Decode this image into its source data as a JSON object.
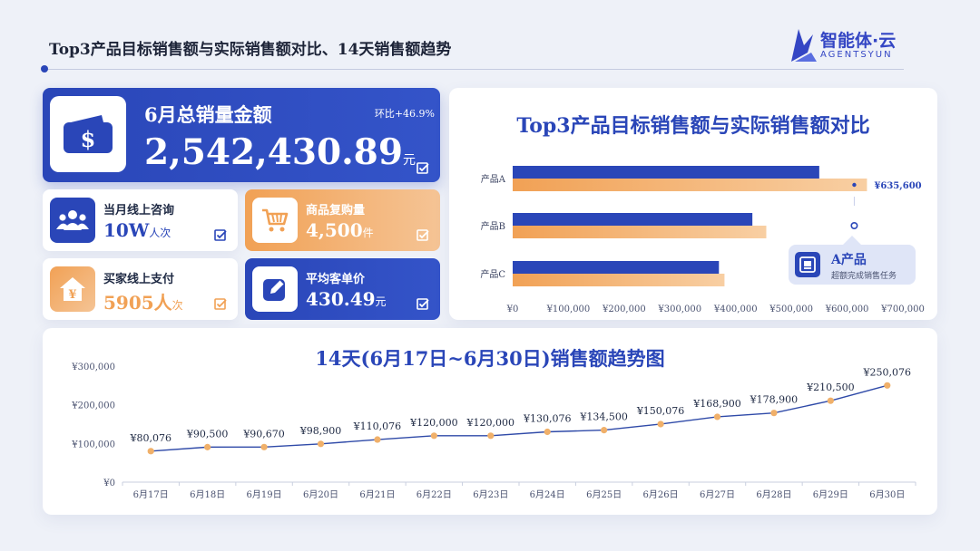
{
  "header": {
    "title": "Top3产品目标销售额与实际销售额对比、14天销售额趋势",
    "logo_cn": "智能体·云",
    "logo_en": "AGENTSYUN"
  },
  "colors": {
    "primary": "#2a46b8",
    "orange": "#f1a155",
    "orange_light": "#f8cfa3",
    "line": "#2f4aa8",
    "dot": "#f0b06a"
  },
  "kpi_main": {
    "label": "6月总销量金额",
    "growth": "环比+46.9%",
    "value": "2,542,430.89",
    "unit": "元",
    "icon": "wallet-dollar-icon"
  },
  "kpis": [
    {
      "label": "当月线上咨询",
      "value": "10W",
      "unit": "人次",
      "icon": "users-icon"
    },
    {
      "label": "商品复购量",
      "value": "4,500",
      "unit": "件",
      "icon": "shopping-cart-icon"
    },
    {
      "label": "买家线上支付",
      "value": "5905人",
      "unit": "次",
      "icon": "yuan-house-icon"
    },
    {
      "label": "平均客单价",
      "value": "430.49",
      "unit": "元",
      "icon": "edit-pen-icon"
    }
  ],
  "bar_tooltip": {
    "title": "A产品",
    "subtitle": "超额完成销售任务",
    "icon": "safe-icon"
  },
  "chart_data": [
    {
      "type": "bar",
      "orientation": "horizontal",
      "title": "Top3产品目标销售额与实际销售额对比",
      "categories": [
        "产品A",
        "产品B",
        "产品C"
      ],
      "series": [
        {
          "values": [
            550000,
            430000,
            370000
          ],
          "color": "#2a46b8"
        },
        {
          "values": [
            635600,
            455000,
            380000
          ],
          "color": "#f1a155"
        }
      ],
      "data_labels": {
        "产品A": "¥635,600"
      },
      "xlim": [
        0,
        700000
      ],
      "x_ticks": [
        "¥0",
        "¥100,000",
        "¥200,000",
        "¥300,000",
        "¥400,000",
        "¥500,000",
        "¥600,000",
        "¥700,000"
      ]
    },
    {
      "type": "line",
      "title": "14天(6月17日~6月30日)销售额趋势图",
      "x": [
        "6月17日",
        "6月18日",
        "6月19日",
        "6月20日",
        "6月21日",
        "6月22日",
        "6月23日",
        "6月24日",
        "6月25日",
        "6月26日",
        "6月27日",
        "6月28日",
        "6月29日",
        "6月30日"
      ],
      "values": [
        80076,
        90500,
        90670,
        98900,
        110076,
        120000,
        120000,
        130076,
        134500,
        150076,
        168900,
        178900,
        210500,
        250076
      ],
      "labels": [
        "¥80,076",
        "¥90,500",
        "¥90,670",
        "¥98,900",
        "¥110,076",
        "¥120,000",
        "¥120,000",
        "¥130,076",
        "¥134,500",
        "¥150,076",
        "¥168,900",
        "¥178,900",
        "¥210,500",
        "¥250,076"
      ],
      "ylim": [
        0,
        300000
      ],
      "y_ticks": [
        "¥0",
        "¥100,000",
        "¥200,000",
        "¥300,000"
      ]
    }
  ]
}
